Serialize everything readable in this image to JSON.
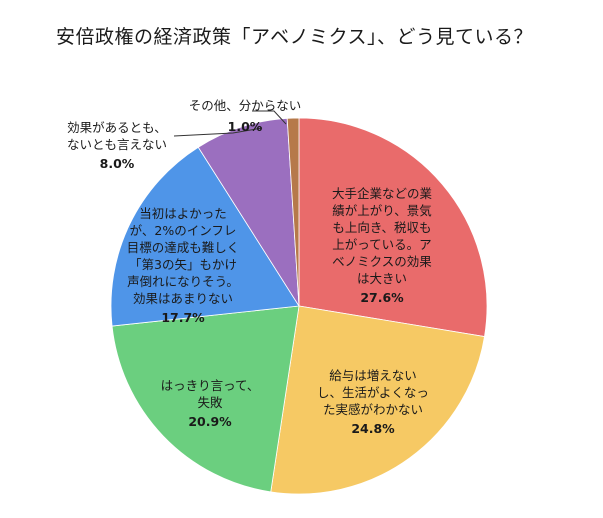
{
  "title": "安倍政権の経済政策「アベノミクス」、どう見ている？",
  "chart_data": {
    "type": "pie",
    "title": "安倍政権の経済政策「アベノミクス」、どう見ている？",
    "start_angle_deg": 0,
    "direction": "clockwise",
    "slices": [
      {
        "label": "大手企業などの業績が上がり、景気も上向き、税収も上がっている。アベノミクスの効果は大きい",
        "value": 27.6,
        "pct_text": "27.6%",
        "color": "#E96B6B"
      },
      {
        "label": "給与は増えないし、生活がよくなった実感がわかない",
        "value": 24.8,
        "pct_text": "24.8%",
        "color": "#F6C964"
      },
      {
        "label": "はっきり言って、失敗",
        "value": 20.9,
        "pct_text": "20.9%",
        "color": "#6BCF7F"
      },
      {
        "label": "当初はよかったが、2%のインフレ目標の達成も難しく「第3の矢」もかけ声倒れになりそう。効果はあまりない",
        "value": 17.7,
        "pct_text": "17.7%",
        "color": "#4F95E8"
      },
      {
        "label": "効果があるとも、ないとも言えない",
        "value": 8.0,
        "pct_text": "8.0%",
        "color": "#9B6FBF"
      },
      {
        "label": "その他、分からない",
        "value": 1.0,
        "pct_text": "1.0%",
        "color": "#B6794A"
      }
    ]
  },
  "labels": {
    "s0": "大手企業などの業\n績が上がり、景気\nも上向き、税収も\n上がっている。ア\nベノミクスの効果\nは大きい",
    "s1": "給与は増えない\nし、生活がよくなっ\nた実感がわかない",
    "s2": "はっきり言って、\n失敗",
    "s3": "当初はよかった\nが、2%のインフレ\n目標の達成も難しく\n「第3の矢」もかけ\n声倒れになりそう。\n効果はあまりない",
    "s4": "効果があるとも、\nないとも言えない",
    "s5": "その他、分からない"
  }
}
